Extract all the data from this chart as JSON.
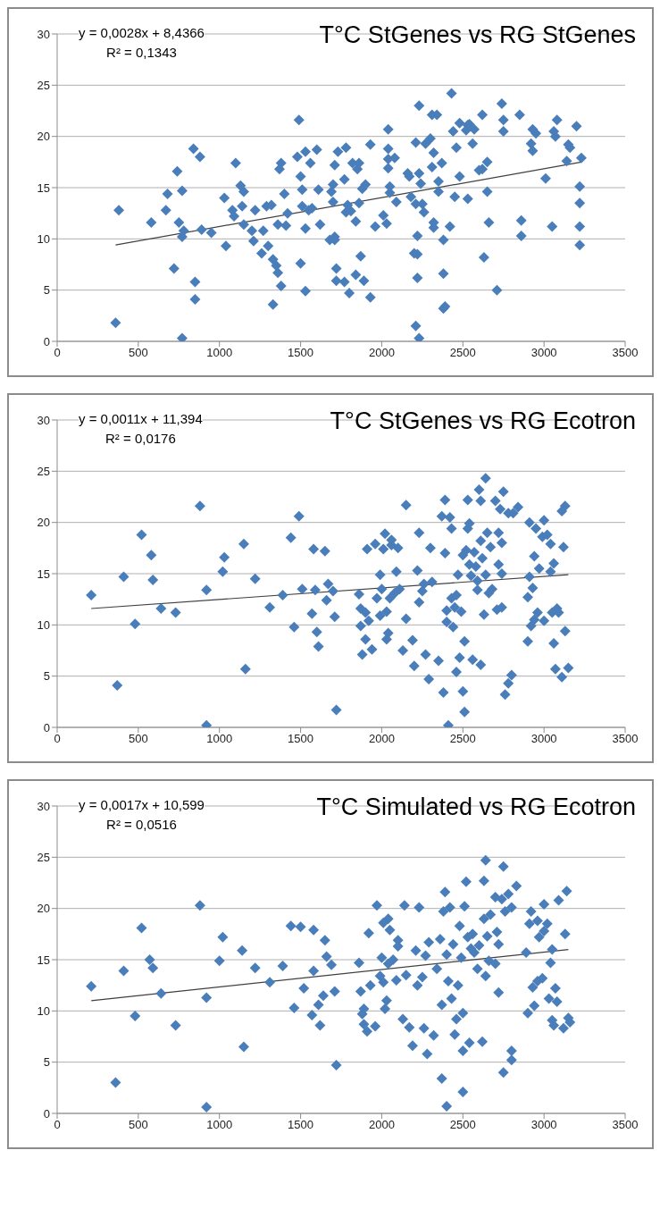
{
  "chart_data": [
    {
      "type": "scatter",
      "title": "T°C StGenes vs RG StGenes",
      "annotations": [
        "y = 0,0028x + 8,4366",
        "R² = 0,1343"
      ],
      "xlim": [
        0,
        3500
      ],
      "xticks": [
        0,
        500,
        1000,
        1500,
        2000,
        2500,
        3000,
        3500
      ],
      "ylim": [
        0,
        30
      ],
      "yticks": [
        0,
        5,
        10,
        15,
        20,
        25,
        30
      ],
      "grid": "y",
      "marker": "diamond",
      "series": [
        {
          "color": "#4a7ebb",
          "x": [
            360,
            380,
            580,
            670,
            680,
            720,
            740,
            750,
            770,
            770,
            780,
            770,
            840,
            850,
            850,
            880,
            890,
            950,
            1030,
            1040,
            1080,
            1090,
            1100,
            1130,
            1140,
            1150,
            1150,
            1200,
            1210,
            1220,
            1260,
            1270,
            1290,
            1300,
            1320,
            1330,
            1330,
            1350,
            1360,
            1360,
            1370,
            1380,
            1380,
            1400,
            1410,
            1420,
            1480,
            1490,
            1500,
            1500,
            1510,
            1510,
            1530,
            1530,
            1530,
            1550,
            1560,
            1570,
            1600,
            1610,
            1620,
            1680,
            1690,
            1700,
            1700,
            1710,
            1710,
            1710,
            1720,
            1720,
            1730,
            1770,
            1770,
            1780,
            1780,
            1790,
            1800,
            1810,
            1820,
            1840,
            1840,
            1850,
            1860,
            1860,
            1870,
            1880,
            1890,
            1900,
            1930,
            1930,
            1960,
            2010,
            2030,
            2040,
            2040,
            2040,
            2040,
            2050,
            2050,
            2080,
            2090,
            2160,
            2170,
            2180,
            2200,
            2220,
            2210,
            2210,
            2220,
            2220,
            2210,
            2230,
            2230,
            2230,
            2240,
            2250,
            2260,
            2270,
            2300,
            2310,
            2310,
            2320,
            2320,
            2320,
            2340,
            2350,
            2350,
            2370,
            2380,
            2380,
            2380,
            2390,
            2420,
            2430,
            2440,
            2450,
            2460,
            2480,
            2480,
            2520,
            2530,
            2530,
            2540,
            2560,
            2570,
            2600,
            2620,
            2620,
            2630,
            2650,
            2650,
            2660,
            2710,
            2740,
            2750,
            2750,
            2850,
            2860,
            2860,
            2920,
            2930,
            2930,
            2950,
            3010,
            3050,
            3060,
            3070,
            3080,
            3140,
            3150,
            3160,
            3200,
            3220,
            3220,
            3220,
            3220,
            3230
          ],
          "values": [
            1.8,
            12.8,
            11.6,
            12.8,
            14.4,
            7.1,
            16.6,
            11.6,
            14.7,
            10.2,
            10.8,
            0.3,
            18.8,
            5.8,
            4.1,
            18,
            10.9,
            10.6,
            14,
            9.3,
            12.8,
            12.2,
            17.4,
            15.2,
            13.2,
            11.4,
            14.6,
            10.8,
            9.8,
            12.8,
            8.6,
            10.8,
            13.2,
            9.3,
            13.3,
            8,
            3.6,
            7.4,
            11.4,
            6.7,
            16.8,
            17.4,
            5.4,
            14.4,
            11.3,
            12.5,
            18,
            21.6,
            16.1,
            7.6,
            14.8,
            13.2,
            18.5,
            11,
            4.9,
            12.8,
            17.4,
            13,
            18.7,
            14.8,
            11.4,
            9.9,
            14.6,
            15.3,
            13.6,
            10.2,
            9.9,
            17.2,
            7.1,
            5.9,
            18.5,
            5.8,
            15.8,
            18.9,
            12.6,
            13.3,
            4.7,
            12.7,
            17.4,
            11.7,
            6.5,
            16.8,
            17.4,
            13.5,
            8.3,
            14.9,
            5.9,
            15.3,
            19.2,
            4.3,
            11.2,
            12.3,
            11.5,
            20.7,
            18.8,
            17.8,
            16.9,
            14.5,
            15.1,
            17.9,
            13.6,
            16.4,
            16.1,
            14.1,
            8.6,
            8.5,
            13.4,
            1.5,
            10.3,
            6.2,
            19.4,
            23,
            0.3,
            16.4,
            15.4,
            13.4,
            12.6,
            19.3,
            19.8,
            17,
            22.1,
            11.6,
            11.1,
            18.4,
            22.1,
            15.6,
            14.6,
            17.4,
            9.9,
            6.6,
            3.2,
            3.4,
            11.2,
            24.2,
            20.5,
            14.1,
            18.9,
            21.3,
            16.1,
            20.6,
            13.9,
            21.1,
            21.2,
            19.3,
            20.7,
            16.7,
            16.8,
            22.1,
            8.2,
            17.5,
            14.6,
            11.6,
            5,
            23.2,
            21.6,
            20.5,
            22.1,
            11.8,
            10.3,
            19.3,
            20.7,
            18.6,
            20.3,
            15.9,
            11.2,
            20.5,
            20,
            21.6,
            17.6,
            19.2,
            18.9,
            21,
            15.1,
            13.5,
            11.2,
            9.4,
            17.9
          ]
        },
        {
          "type": "line",
          "color": "#404040",
          "marker": "none",
          "x": [
            360,
            3230
          ],
          "values": [
            9.4,
            17.5
          ]
        }
      ]
    },
    {
      "type": "scatter",
      "title": "T°C  StGenes vs RG Ecotron",
      "annotations": [
        "y = 0,0011x + 11,394",
        "R² = 0,0176"
      ],
      "xlim": [
        0,
        3500
      ],
      "xticks": [
        0,
        500,
        1000,
        1500,
        2000,
        2500,
        3000,
        3500
      ],
      "ylim": [
        0,
        30
      ],
      "yticks": [
        0,
        5,
        10,
        15,
        20,
        25,
        30
      ],
      "grid": "y",
      "marker": "diamond",
      "series": [
        {
          "color": "#4a7ebb",
          "x": [
            210,
            370,
            410,
            480,
            520,
            580,
            590,
            640,
            730,
            880,
            920,
            920,
            1020,
            1030,
            1150,
            1160,
            1220,
            1310,
            1390,
            1440,
            1460,
            1490,
            1510,
            1570,
            1580,
            1590,
            1600,
            1610,
            1650,
            1660,
            1670,
            1700,
            1710,
            1720,
            1860,
            1870,
            1870,
            1880,
            1900,
            1900,
            1910,
            1920,
            1940,
            1960,
            1970,
            1990,
            1990,
            2000,
            2010,
            2020,
            2030,
            2030,
            2040,
            2050,
            2060,
            2060,
            2080,
            2090,
            2100,
            2110,
            2130,
            2150,
            2150,
            2190,
            2200,
            2220,
            2230,
            2230,
            2250,
            2260,
            2270,
            2290,
            2300,
            2310,
            2350,
            2370,
            2380,
            2390,
            2390,
            2400,
            2400,
            2410,
            2420,
            2430,
            2430,
            2440,
            2450,
            2460,
            2460,
            2470,
            2480,
            2490,
            2500,
            2500,
            2510,
            2510,
            2520,
            2530,
            2530,
            2540,
            2540,
            2550,
            2560,
            2570,
            2580,
            2590,
            2590,
            2600,
            2610,
            2610,
            2610,
            2620,
            2630,
            2640,
            2640,
            2650,
            2660,
            2670,
            2680,
            2700,
            2710,
            2720,
            2720,
            2730,
            2740,
            2740,
            2740,
            2750,
            2760,
            2780,
            2780,
            2800,
            2810,
            2840,
            2900,
            2900,
            2910,
            2910,
            2920,
            2930,
            2940,
            2940,
            2950,
            2960,
            2970,
            2990,
            3000,
            3000,
            3020,
            3040,
            3040,
            3050,
            3060,
            3060,
            3070,
            3080,
            3090,
            3110,
            3110,
            3120,
            3130,
            3130,
            3150
          ],
          "values": [
            12.9,
            4.1,
            14.7,
            10.1,
            18.8,
            16.8,
            14.4,
            11.6,
            11.2,
            21.6,
            13.4,
            0.2,
            15.2,
            16.6,
            17.9,
            5.7,
            14.5,
            11.7,
            12.9,
            18.5,
            9.8,
            20.6,
            13.5,
            11.1,
            17.4,
            13.4,
            9.3,
            7.9,
            17.2,
            12.4,
            14,
            13.3,
            10.8,
            1.7,
            13,
            9.9,
            11.6,
            7.1,
            11.2,
            8.6,
            17.4,
            10.4,
            7.6,
            17.9,
            12.6,
            14.9,
            10.9,
            13.5,
            17.4,
            18.9,
            11.3,
            8.6,
            9.2,
            12.6,
            18.3,
            17.8,
            13.1,
            15.2,
            17.5,
            13.5,
            7.5,
            21.7,
            10.6,
            8.5,
            6,
            15.3,
            12.2,
            19,
            13.3,
            14,
            7.1,
            4.7,
            17.5,
            14.2,
            6.5,
            20.6,
            3.4,
            17,
            22.2,
            11.4,
            10.3,
            0.2,
            20.5,
            12.6,
            19.4,
            9.8,
            11.7,
            12.9,
            5.4,
            14.9,
            6.8,
            11.3,
            16.8,
            3.5,
            1.5,
            8.4,
            17.3,
            22.2,
            19.4,
            15.9,
            19.9,
            14.8,
            6.6,
            17.1,
            15.7,
            13.4,
            14.3,
            23.2,
            22.1,
            6.1,
            18.2,
            16.5,
            11,
            24.3,
            14.9,
            19,
            13.1,
            17.6,
            13.5,
            22.1,
            11.5,
            19,
            15.9,
            21.3,
            11.7,
            18,
            15,
            23,
            3.2,
            20.9,
            4.3,
            5.1,
            20.9,
            21.5,
            12.7,
            8.4,
            14.7,
            20,
            9.9,
            13.6,
            16.7,
            10.5,
            19.4,
            11.2,
            15.5,
            18.6,
            20.2,
            10.4,
            18.8,
            15.2,
            17.9,
            11.2,
            16,
            8.2,
            5.7,
            11.6,
            11.2,
            4.9,
            21.1,
            17.6,
            21.6,
            9.4,
            5.8
          ]
        },
        {
          "type": "line",
          "color": "#404040",
          "marker": "none",
          "x": [
            210,
            3150
          ],
          "values": [
            11.6,
            14.9
          ]
        }
      ]
    },
    {
      "type": "scatter",
      "title": "T°C  Simulated vs RG Ecotron",
      "annotations": [
        "y = 0,0017x + 10,599",
        "R² = 0,0516"
      ],
      "xlim": [
        0,
        3500
      ],
      "xticks": [
        0,
        500,
        1000,
        1500,
        2000,
        2500,
        3000,
        3500
      ],
      "ylim": [
        0,
        30
      ],
      "yticks": [
        0,
        5,
        10,
        15,
        20,
        25,
        30
      ],
      "grid": "y",
      "marker": "diamond",
      "series": [
        {
          "color": "#4a7ebb",
          "x": [
            210,
            360,
            410,
            480,
            520,
            570,
            590,
            640,
            730,
            880,
            920,
            920,
            1000,
            1020,
            1140,
            1150,
            1220,
            1310,
            1390,
            1440,
            1460,
            1500,
            1520,
            1570,
            1580,
            1580,
            1610,
            1620,
            1640,
            1650,
            1660,
            1690,
            1710,
            1720,
            1860,
            1870,
            1880,
            1890,
            1890,
            1910,
            1920,
            1930,
            1960,
            1970,
            1990,
            2000,
            2010,
            2010,
            2020,
            2030,
            2040,
            2040,
            2050,
            2070,
            2090,
            2100,
            2100,
            2130,
            2140,
            2150,
            2170,
            2190,
            2210,
            2220,
            2230,
            2250,
            2260,
            2270,
            2280,
            2290,
            2320,
            2340,
            2360,
            2370,
            2370,
            2380,
            2390,
            2400,
            2400,
            2410,
            2420,
            2430,
            2440,
            2450,
            2460,
            2470,
            2480,
            2490,
            2500,
            2500,
            2500,
            2510,
            2520,
            2530,
            2540,
            2550,
            2560,
            2570,
            2590,
            2600,
            2620,
            2630,
            2630,
            2640,
            2640,
            2650,
            2660,
            2670,
            2700,
            2700,
            2710,
            2720,
            2720,
            2740,
            2750,
            2750,
            2760,
            2780,
            2800,
            2800,
            2800,
            2830,
            2890,
            2900,
            2910,
            2920,
            2930,
            2940,
            2960,
            2960,
            2970,
            2990,
            3000,
            3000,
            3020,
            3030,
            3040,
            3050,
            3050,
            3060,
            3070,
            3080,
            3090,
            3120,
            3130,
            3140,
            3150,
            3160
          ],
          "values": [
            12.4,
            3,
            13.9,
            9.5,
            18.1,
            15,
            14.2,
            11.7,
            8.6,
            20.3,
            11.3,
            0.6,
            14.9,
            17.2,
            15.9,
            6.5,
            14.2,
            12.8,
            14.4,
            18.3,
            10.3,
            18.2,
            12.2,
            9.6,
            17.9,
            13.9,
            10.6,
            8.6,
            11.5,
            16.9,
            15.3,
            14.5,
            11.9,
            4.7,
            14.7,
            11.9,
            9.7,
            8.7,
            10.2,
            8,
            17.6,
            12.5,
            8.5,
            20.3,
            13.4,
            15.2,
            18.6,
            12.8,
            10.2,
            11,
            14.6,
            19,
            17.9,
            15,
            13,
            16.3,
            16.9,
            9.2,
            20.3,
            13.5,
            8.4,
            6.6,
            15.9,
            12.5,
            20.1,
            13.3,
            8.3,
            15.4,
            5.8,
            16.7,
            7.6,
            14.1,
            17,
            10.6,
            3.4,
            19.7,
            21.6,
            15.5,
            0.7,
            12.9,
            20.1,
            11.2,
            16.5,
            7.7,
            9.2,
            12.5,
            18.3,
            15.2,
            9.8,
            6.1,
            2.1,
            20.2,
            22.6,
            17.2,
            6.9,
            16.1,
            17.5,
            15.7,
            14.1,
            16.4,
            7,
            22.7,
            19,
            24.7,
            13.4,
            17.3,
            14.9,
            19.4,
            21.1,
            14.6,
            17.7,
            11.8,
            16.5,
            20.9,
            4,
            24.1,
            19.7,
            21.4,
            20.1,
            6.1,
            5.2,
            22.2,
            15.7,
            9.8,
            18.5,
            19.7,
            12.3,
            10.5,
            18.8,
            12.9,
            17.2,
            13.2,
            17.8,
            20.4,
            18.5,
            11.2,
            14.7,
            16,
            9.1,
            8.6,
            12.2,
            10.9,
            20.8,
            8.3,
            17.5,
            21.7,
            9.3,
            8.9
          ]
        },
        {
          "type": "line",
          "color": "#404040",
          "marker": "none",
          "x": [
            210,
            3150
          ],
          "values": [
            11.0,
            16.0
          ]
        }
      ]
    }
  ]
}
